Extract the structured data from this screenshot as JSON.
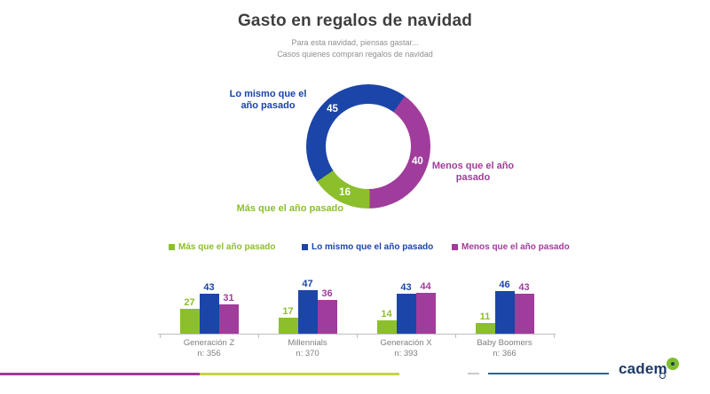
{
  "header": {
    "title": "Gasto en regalos de navidad",
    "subtitle_line1": "Para esta navidad, piensas gastar...",
    "subtitle_line2": "Casos quienes compran regalos de navidad"
  },
  "colors": {
    "more": "#8CBF2C",
    "same": "#1B45A8",
    "less": "#A03C9B",
    "title_text": "#3F3F3F",
    "subtitle_text": "#8F8F8F",
    "axis": "#BFBFBF",
    "category_text": "#7F7F7F",
    "footer_purple": "#A03C9B",
    "footer_yellow": "#C9D145",
    "footer_blue": "#33628F",
    "footer_dash": "#C9C9C9",
    "logo_navy": "#1E3A68",
    "logo_green": "#7FBE2E"
  },
  "donut_labels": {
    "same_line1": "Lo mismo que el",
    "same_line2": "año pasado",
    "less_line1": "Menos que el año",
    "less_line2": "pasado",
    "more_line1": "Más que el año pasado"
  },
  "legend": [
    {
      "label": "Más que el año pasado",
      "color_key": "more"
    },
    {
      "label": "Lo mismo que el año pasado",
      "color_key": "same"
    },
    {
      "label": "Menos que el año pasado",
      "color_key": "less"
    }
  ],
  "chart_data": [
    {
      "type": "pie",
      "subtype": "donut",
      "title": "Para esta navidad, piensas gastar...",
      "slices": [
        {
          "label": "Lo mismo que el año pasado",
          "value": 45,
          "color": "#1B45A8"
        },
        {
          "label": "Menos que el año pasado",
          "value": 40,
          "color": "#A03C9B"
        },
        {
          "label": "Más que el año pasado",
          "value": 16,
          "color": "#8CBF2C"
        }
      ],
      "layout": {
        "start_deg": 36,
        "draw_order": [
          1,
          2,
          0
        ],
        "label_radius": 58
      }
    },
    {
      "type": "bar",
      "categories": [
        "Generación Z",
        "Millennials",
        "Generación X",
        "Baby Boomers"
      ],
      "category_n": [
        "n: 356",
        "n: 370",
        "n: 393",
        "n: 366"
      ],
      "series": [
        {
          "name": "Más que el año pasado",
          "color": "#8CBF2C",
          "values": [
            27,
            17,
            14,
            11
          ]
        },
        {
          "name": "Lo mismo que el año pasado",
          "color": "#1B45A8",
          "values": [
            43,
            47,
            43,
            46
          ]
        },
        {
          "name": "Menos que el año pasado",
          "color": "#A03C9B",
          "values": [
            31,
            36,
            44,
            43
          ]
        }
      ],
      "ylim": [
        0,
        50
      ],
      "grid": false,
      "legend_position": "top"
    }
  ],
  "footer": {
    "logo_text": "cadem"
  }
}
